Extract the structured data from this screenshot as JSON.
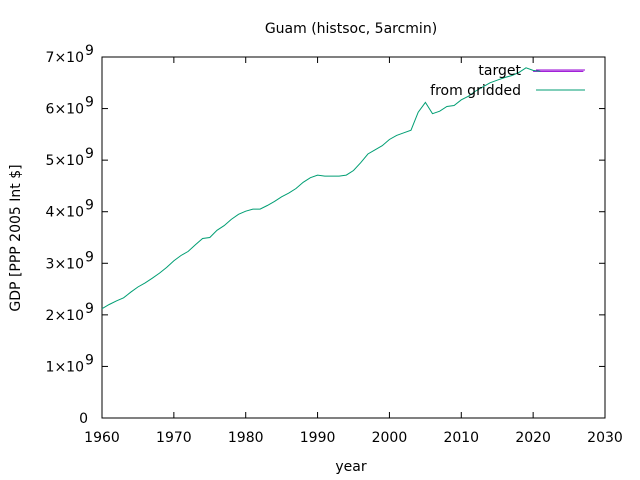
{
  "chart_data": {
    "type": "line",
    "title": "Guam (histsoc, 5arcmin)",
    "xlabel": "year",
    "ylabel": "GDP [PPP 2005 Int $]",
    "xlim": [
      1960,
      2030
    ],
    "ylim": [
      0,
      7000000000
    ],
    "x_ticks": [
      "1960",
      "1970",
      "1980",
      "1990",
      "2000",
      "2010",
      "2020",
      "2030"
    ],
    "y_ticks": [
      {
        "mantissa": "0",
        "exp": ""
      },
      {
        "mantissa": "1×10",
        "exp": "9"
      },
      {
        "mantissa": "2×10",
        "exp": "9"
      },
      {
        "mantissa": "3×10",
        "exp": "9"
      },
      {
        "mantissa": "4×10",
        "exp": "9"
      },
      {
        "mantissa": "5×10",
        "exp": "9"
      },
      {
        "mantissa": "6×10",
        "exp": "9"
      },
      {
        "mantissa": "7×10",
        "exp": "9"
      }
    ],
    "grid": false,
    "legend_position": "top-right",
    "series": [
      {
        "name": "target",
        "color": "#9400d3",
        "x": [
          2020,
          2021,
          2022,
          2023,
          2024,
          2025,
          2026,
          2027
        ],
        "y": [
          6720000000.0,
          6720000000.0,
          6720000000.0,
          6720000000.0,
          6720000000.0,
          6720000000.0,
          6720000000.0,
          6720000000.0
        ]
      },
      {
        "name": "from gridded",
        "color": "#009e73",
        "x": [
          1960,
          1961,
          1962,
          1963,
          1964,
          1965,
          1966,
          1967,
          1968,
          1969,
          1970,
          1971,
          1972,
          1973,
          1974,
          1975,
          1976,
          1977,
          1978,
          1979,
          1980,
          1981,
          1982,
          1983,
          1984,
          1985,
          1986,
          1987,
          1988,
          1989,
          1990,
          1991,
          1992,
          1993,
          1994,
          1995,
          1996,
          1997,
          1998,
          1999,
          2000,
          2001,
          2002,
          2003,
          2004,
          2005,
          2006,
          2007,
          2008,
          2009,
          2010,
          2011,
          2012,
          2013,
          2014,
          2015,
          2016,
          2017,
          2018,
          2019,
          2020,
          2021
        ],
        "y": [
          2120000000.0,
          2200000000.0,
          2270000000.0,
          2330000000.0,
          2440000000.0,
          2540000000.0,
          2620000000.0,
          2710000000.0,
          2810000000.0,
          2920000000.0,
          3050000000.0,
          3150000000.0,
          3230000000.0,
          3360000000.0,
          3480000000.0,
          3500000000.0,
          3640000000.0,
          3730000000.0,
          3850000000.0,
          3950000000.0,
          4010000000.0,
          4050000000.0,
          4050000000.0,
          4120000000.0,
          4200000000.0,
          4290000000.0,
          4360000000.0,
          4450000000.0,
          4570000000.0,
          4660000000.0,
          4710000000.0,
          4690000000.0,
          4690000000.0,
          4690000000.0,
          4710000000.0,
          4800000000.0,
          4950000000.0,
          5120000000.0,
          5200000000.0,
          5280000000.0,
          5400000000.0,
          5480000000.0,
          5530000000.0,
          5580000000.0,
          5930000000.0,
          6120000000.0,
          5900000000.0,
          5950000000.0,
          6040000000.0,
          6060000000.0,
          6170000000.0,
          6240000000.0,
          6340000000.0,
          6420000000.0,
          6500000000.0,
          6550000000.0,
          6600000000.0,
          6640000000.0,
          6700000000.0,
          6790000000.0,
          6740000000.0,
          6720000000.0
        ]
      }
    ]
  }
}
